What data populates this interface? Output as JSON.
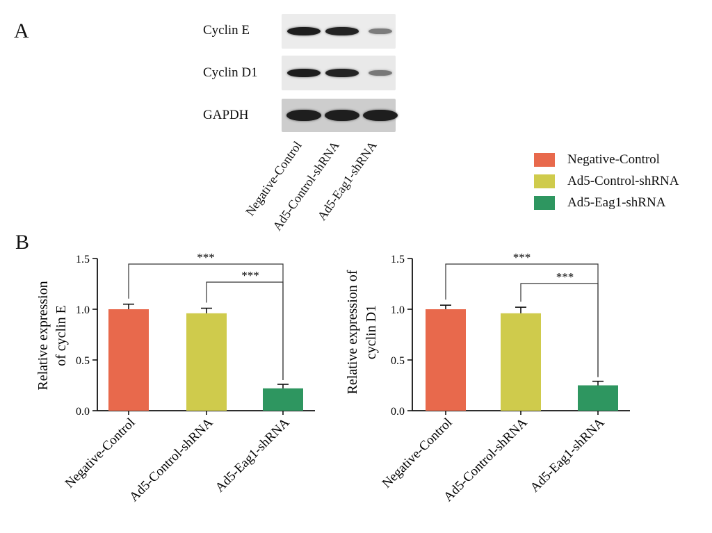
{
  "panels": {
    "a": "A",
    "b": "B"
  },
  "western_blot": {
    "rows": [
      {
        "label": "Cyclin E",
        "intensity": [
          1.0,
          0.96,
          0.22
        ]
      },
      {
        "label": "Cyclin D1",
        "intensity": [
          1.0,
          0.96,
          0.25
        ]
      },
      {
        "label": "GAPDH",
        "intensity": [
          1.0,
          1.0,
          1.0
        ]
      }
    ],
    "lanes": [
      "Negative-Control",
      "Ad5-Control-shRNA",
      "Ad5-Eag1-shRNA"
    ]
  },
  "legend": [
    {
      "label": "Negative-Control",
      "color": "#e8694c"
    },
    {
      "label": "Ad5-Control-shRNA",
      "color": "#cfcb4c"
    },
    {
      "label": "Ad5-Eag1-shRNA",
      "color": "#2e9660"
    }
  ],
  "chart_data": [
    {
      "type": "bar",
      "categories": [
        "Negative-Control",
        "Ad5-Control-shRNA",
        "Ad5-Eag1-shRNA"
      ],
      "values": [
        1.0,
        0.96,
        0.22
      ],
      "errors": [
        0.05,
        0.05,
        0.04
      ],
      "colors": [
        "#e8694c",
        "#cfcb4c",
        "#2e9660"
      ],
      "ylabel_lines": [
        "Relative expression",
        "of cyclin E"
      ],
      "ylim": [
        0,
        1.5
      ],
      "yticks": [
        "0.0",
        "0.5",
        "1.0",
        "1.5"
      ],
      "significance": [
        {
          "from": 0,
          "to": 2,
          "label": "***"
        },
        {
          "from": 1,
          "to": 2,
          "label": "***"
        }
      ]
    },
    {
      "type": "bar",
      "categories": [
        "Negative-Control",
        "Ad5-Control-shRNA",
        "Ad5-Eag1-shRNA"
      ],
      "values": [
        1.0,
        0.96,
        0.25
      ],
      "errors": [
        0.04,
        0.06,
        0.04
      ],
      "colors": [
        "#e8694c",
        "#cfcb4c",
        "#2e9660"
      ],
      "ylabel_lines": [
        "Relative expression of",
        "cyclin D1"
      ],
      "ylim": [
        0,
        1.5
      ],
      "yticks": [
        "0.0",
        "0.5",
        "1.0",
        "1.5"
      ],
      "significance": [
        {
          "from": 0,
          "to": 2,
          "label": "***"
        },
        {
          "from": 1,
          "to": 2,
          "label": "***"
        }
      ]
    }
  ]
}
